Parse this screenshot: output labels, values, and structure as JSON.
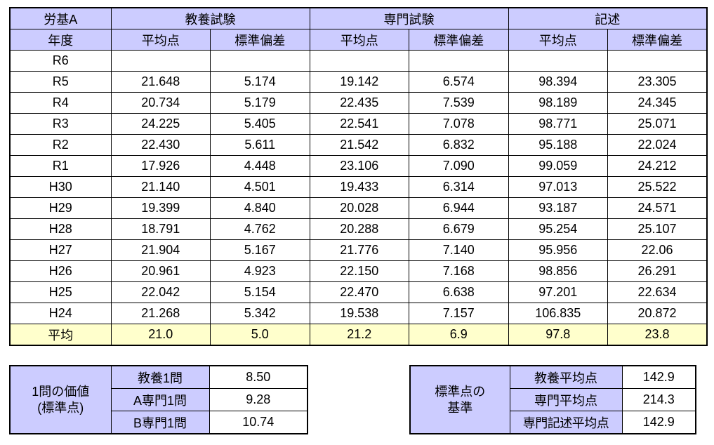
{
  "colors": {
    "header_bg": "#CCCCFF",
    "average_bg": "#FFFFCC",
    "border": "#000000",
    "text": "#000000"
  },
  "main_table": {
    "corner_title": "労基A",
    "corner_sub": "年度",
    "group_headers": [
      "教養試験",
      "専門試験",
      "記述"
    ],
    "sub_headers": [
      "平均点",
      "標準偏差",
      "平均点",
      "標準偏差",
      "平均点",
      "標準偏差"
    ],
    "rows": [
      {
        "year": "R6",
        "values": [
          "",
          "",
          "",
          "",
          "",
          ""
        ]
      },
      {
        "year": "R5",
        "values": [
          "21.648",
          "5.174",
          "19.142",
          "6.574",
          "98.394",
          "23.305"
        ]
      },
      {
        "year": "R4",
        "values": [
          "20.734",
          "5.179",
          "22.435",
          "7.539",
          "98.189",
          "24.345"
        ]
      },
      {
        "year": "R3",
        "values": [
          "24.225",
          "5.405",
          "22.541",
          "7.078",
          "98.771",
          "25.071"
        ]
      },
      {
        "year": "R2",
        "values": [
          "22.430",
          "5.611",
          "21.542",
          "6.832",
          "95.188",
          "22.024"
        ]
      },
      {
        "year": "R1",
        "values": [
          "17.926",
          "4.448",
          "23.106",
          "7.090",
          "99.059",
          "24.212"
        ]
      },
      {
        "year": "H30",
        "values": [
          "21.140",
          "4.501",
          "19.433",
          "6.314",
          "97.013",
          "25.522"
        ]
      },
      {
        "year": "H29",
        "values": [
          "19.399",
          "4.840",
          "20.028",
          "6.944",
          "93.187",
          "24.571"
        ]
      },
      {
        "year": "H28",
        "values": [
          "18.791",
          "4.762",
          "20.288",
          "6.679",
          "95.254",
          "25.107"
        ]
      },
      {
        "year": "H27",
        "values": [
          "21.904",
          "5.167",
          "21.776",
          "7.140",
          "95.956",
          "22.06"
        ]
      },
      {
        "year": "H26",
        "values": [
          "20.961",
          "4.923",
          "22.150",
          "7.168",
          "98.856",
          "26.291"
        ]
      },
      {
        "year": "H25",
        "values": [
          "22.042",
          "5.154",
          "22.470",
          "6.638",
          "97.201",
          "22.634"
        ]
      },
      {
        "year": "H24",
        "values": [
          "21.268",
          "5.342",
          "19.538",
          "7.157",
          "106.835",
          "20.872"
        ]
      }
    ],
    "average_row": {
      "label": "平均",
      "values": [
        "21.0",
        "5.0",
        "21.2",
        "6.9",
        "97.8",
        "23.8"
      ]
    }
  },
  "value_table": {
    "title_line1": "1問の価値",
    "title_line2": "(標準点)",
    "rows": [
      {
        "label": "教養1問",
        "value": "8.50"
      },
      {
        "label": "A専門1問",
        "value": "9.28"
      },
      {
        "label": "B専門1問",
        "value": "10.74"
      }
    ]
  },
  "standard_table": {
    "title_line1": "標準点の",
    "title_line2": "基準",
    "rows": [
      {
        "label": "教養平均点",
        "value": "142.9"
      },
      {
        "label": "専門平均点",
        "value": "214.3"
      },
      {
        "label": "専門記述平均点",
        "value": "142.9"
      }
    ]
  }
}
